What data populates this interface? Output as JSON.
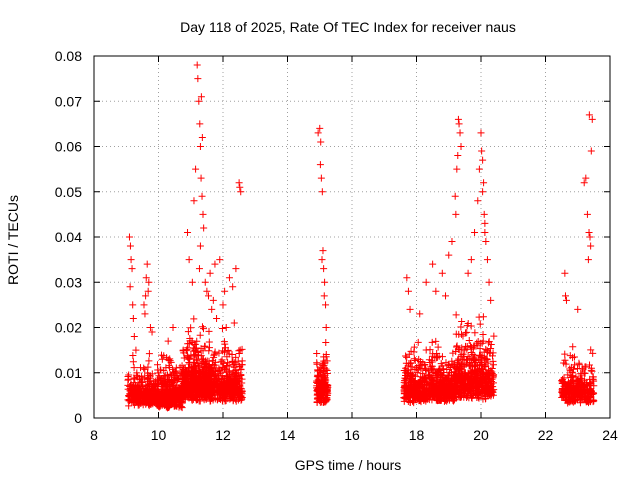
{
  "chart_data": {
    "type": "scatter",
    "title": "Day 118 of 2025, Rate Of TEC Index for receiver naus",
    "xlabel": "GPS time / hours",
    "ylabel": "ROTI / TECUs",
    "xlim": [
      8,
      24
    ],
    "ylim": [
      0,
      0.08
    ],
    "xticks": [
      "8",
      "10",
      "12",
      "14",
      "16",
      "18",
      "20",
      "22",
      "24"
    ],
    "yticks": [
      "0",
      "0.01",
      "0.02",
      "0.03",
      "0.04",
      "0.05",
      "0.06",
      "0.07",
      "0.08"
    ],
    "grid": true,
    "marker": "plus",
    "color": "#ff0000",
    "series": [
      {
        "x": [
          9.1,
          9.13,
          9.18,
          9.2,
          9.22,
          9.25,
          9.3,
          9.15,
          9.12,
          9.65,
          9.7,
          9.6,
          9.55,
          9.62,
          9.58,
          9.75,
          9.8,
          9.68,
          10.3,
          10.45,
          10.9,
          10.95,
          11.05,
          11.1,
          11.15,
          11.2,
          11.22,
          11.25,
          11.28,
          11.3,
          11.32,
          11.35,
          11.38,
          11.4,
          11.3,
          11.27,
          11.33,
          11.36,
          11.45,
          11.5,
          11.6,
          11.7,
          11.8,
          11.9,
          12.0,
          12.1,
          12.2,
          12.3,
          12.4,
          12.5,
          12.55,
          12.52,
          11.55,
          11.65,
          11.75,
          12.05,
          12.35,
          14.95,
          15.0,
          15.02,
          15.05,
          15.08,
          15.1,
          15.12,
          15.15,
          15.18,
          15.2,
          15.03,
          15.07,
          15.14,
          17.7,
          17.75,
          17.8,
          18.1,
          18.3,
          18.5,
          18.6,
          18.8,
          18.9,
          19.0,
          19.1,
          19.2,
          19.25,
          19.3,
          19.35,
          19.38,
          19.28,
          19.32,
          19.22,
          19.6,
          19.7,
          19.8,
          19.9,
          19.95,
          20.0,
          20.02,
          20.05,
          20.08,
          20.1,
          20.12,
          20.15,
          20.2,
          20.25,
          20.3,
          20.05,
          20.12,
          22.6,
          22.62,
          22.65,
          23.0,
          23.2,
          23.25,
          23.3,
          23.35,
          23.38,
          23.4,
          23.42,
          23.45,
          23.36,
          23.33
        ],
        "y": [
          0.04,
          0.038,
          0.033,
          0.025,
          0.022,
          0.018,
          0.015,
          0.035,
          0.029,
          0.034,
          0.03,
          0.027,
          0.025,
          0.031,
          0.023,
          0.02,
          0.019,
          0.028,
          0.017,
          0.02,
          0.041,
          0.035,
          0.03,
          0.048,
          0.055,
          0.078,
          0.075,
          0.07,
          0.065,
          0.06,
          0.053,
          0.049,
          0.045,
          0.042,
          0.038,
          0.033,
          0.071,
          0.062,
          0.03,
          0.028,
          0.032,
          0.026,
          0.022,
          0.035,
          0.025,
          0.02,
          0.031,
          0.029,
          0.033,
          0.052,
          0.05,
          0.051,
          0.027,
          0.024,
          0.034,
          0.028,
          0.021,
          0.063,
          0.064,
          0.056,
          0.053,
          0.05,
          0.037,
          0.033,
          0.03,
          0.025,
          0.02,
          0.061,
          0.035,
          0.027,
          0.031,
          0.028,
          0.024,
          0.023,
          0.03,
          0.034,
          0.028,
          0.032,
          0.027,
          0.036,
          0.039,
          0.049,
          0.055,
          0.066,
          0.063,
          0.06,
          0.058,
          0.065,
          0.045,
          0.032,
          0.035,
          0.041,
          0.048,
          0.055,
          0.063,
          0.059,
          0.057,
          0.052,
          0.045,
          0.043,
          0.039,
          0.035,
          0.03,
          0.026,
          0.05,
          0.041,
          0.032,
          0.027,
          0.026,
          0.024,
          0.052,
          0.053,
          0.045,
          0.041,
          0.04,
          0.038,
          0.059,
          0.066,
          0.067,
          0.035
        ]
      }
    ],
    "clusters": [
      {
        "x": [
          9.05,
          9.95
        ],
        "y": [
          0.0015,
          0.016
        ],
        "n": 320
      },
      {
        "x": [
          9.95,
          10.75
        ],
        "y": [
          0.001,
          0.017
        ],
        "n": 380
      },
      {
        "x": [
          10.75,
          11.6
        ],
        "y": [
          0.002,
          0.025
        ],
        "n": 520
      },
      {
        "x": [
          11.6,
          12.6
        ],
        "y": [
          0.002,
          0.022
        ],
        "n": 420
      },
      {
        "x": [
          14.9,
          15.25
        ],
        "y": [
          0.002,
          0.02
        ],
        "n": 170
      },
      {
        "x": [
          17.6,
          18.4
        ],
        "y": [
          0.002,
          0.02
        ],
        "n": 300
      },
      {
        "x": [
          18.4,
          19.2
        ],
        "y": [
          0.002,
          0.021
        ],
        "n": 330
      },
      {
        "x": [
          19.2,
          20.4
        ],
        "y": [
          0.002,
          0.028
        ],
        "n": 480
      },
      {
        "x": [
          22.5,
          23.5
        ],
        "y": [
          0.002,
          0.018
        ],
        "n": 300
      }
    ]
  }
}
